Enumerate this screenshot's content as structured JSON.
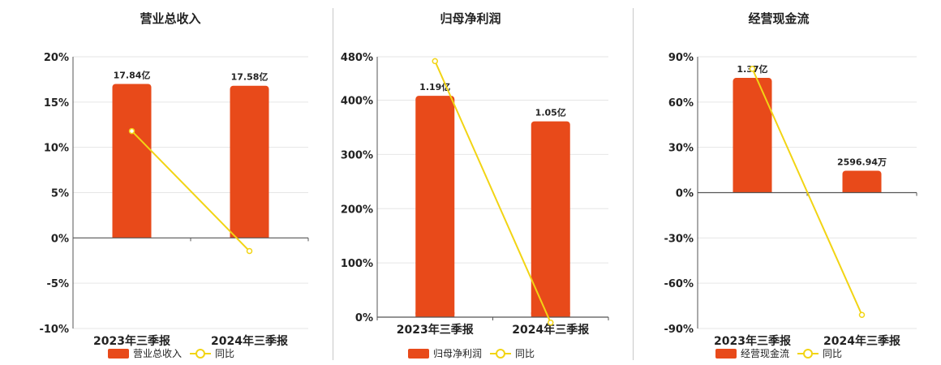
{
  "colors": {
    "bar": "#e84a1a",
    "line": "#f2d414",
    "grid": "#e6e6e6",
    "axis": "#555555",
    "divider": "#c8c8c8"
  },
  "chart_data": [
    {
      "type": "bar",
      "title": "营业总收入",
      "categories": [
        "2023年三季报",
        "2024年三季报"
      ],
      "yticks": [
        "20%",
        "15%",
        "10%",
        "5%",
        "0%",
        "-5%",
        "-10%"
      ],
      "ylim": [
        -10,
        20
      ],
      "bar_values": [
        17,
        16.8
      ],
      "bar_labels": [
        "17.84亿",
        "17.58亿"
      ],
      "line_values": [
        11.8,
        -1.45
      ],
      "legend": {
        "bar": "营业总收入",
        "line": "同比"
      }
    },
    {
      "type": "bar",
      "title": "归母净利润",
      "categories": [
        "2023年三季报",
        "2024年三季报"
      ],
      "yticks": [
        "480%",
        "400%",
        "300%",
        "200%",
        "100%",
        "0%"
      ],
      "ylim": [
        0,
        480
      ],
      "bar_values": [
        408,
        361
      ],
      "bar_labels": [
        "1.19亿",
        "1.05亿"
      ],
      "line_values": [
        472,
        -10
      ],
      "legend": {
        "bar": "归母净利润",
        "line": "同比"
      }
    },
    {
      "type": "bar",
      "title": "经营现金流",
      "categories": [
        "2023年三季报",
        "2024年三季报"
      ],
      "yticks": [
        "90%",
        "60%",
        "30%",
        "0%",
        "-30%",
        "-60%",
        "-90%"
      ],
      "ylim": [
        -90,
        90
      ],
      "bar_values": [
        76,
        14.5
      ],
      "bar_labels": [
        "1.37亿",
        "2596.94万"
      ],
      "line_values": [
        82,
        -81
      ],
      "legend": {
        "bar": "经营现金流",
        "line": "同比"
      }
    }
  ]
}
